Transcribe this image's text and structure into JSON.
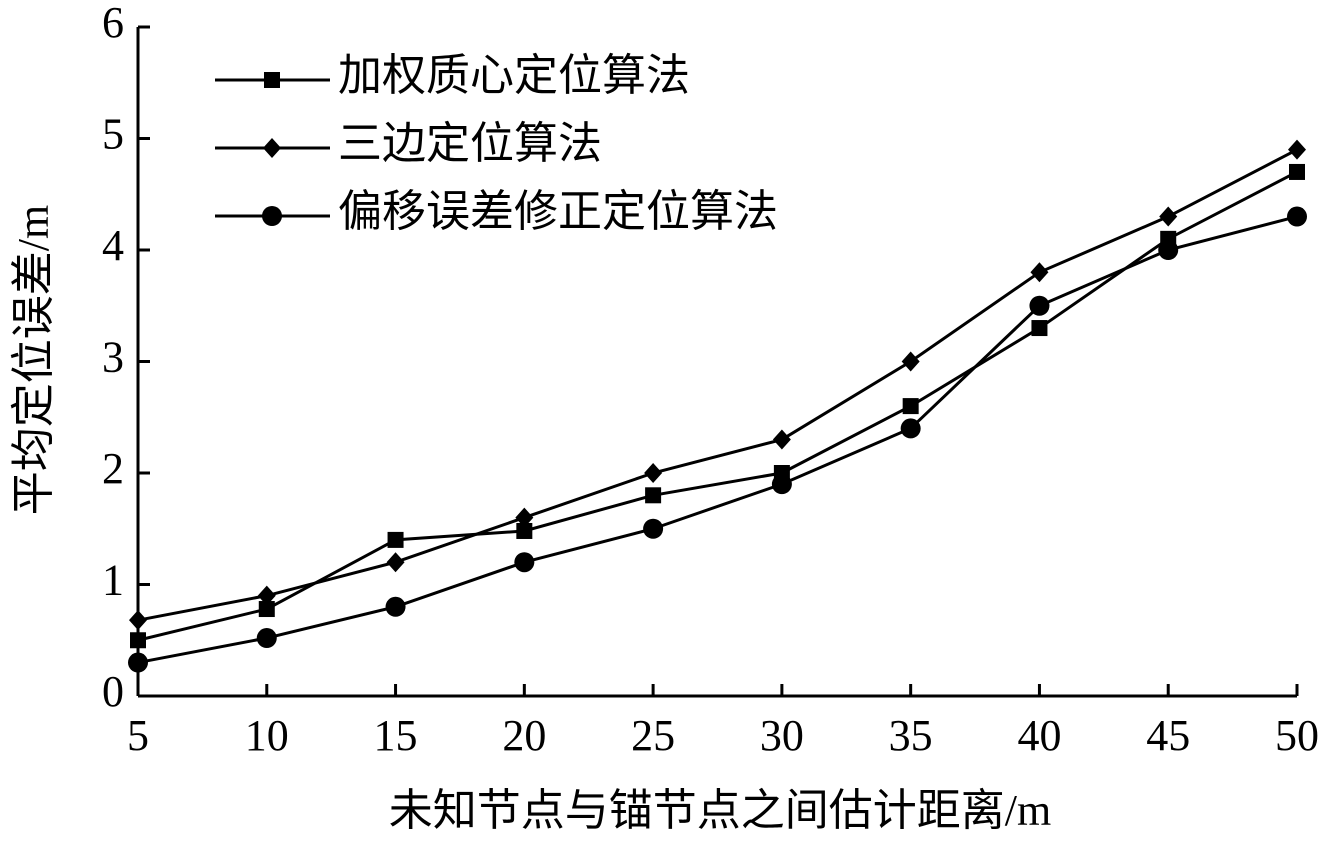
{
  "chart_data": {
    "type": "line",
    "x_label": "未知节点与锚节点之间估计距离/m",
    "y_label": "平均定位误差/m",
    "x": [
      5,
      10,
      15,
      20,
      25,
      30,
      35,
      40,
      45,
      50
    ],
    "xlim": [
      5,
      50
    ],
    "xticks": [
      5,
      10,
      15,
      20,
      25,
      30,
      35,
      40,
      45,
      50
    ],
    "ylim": [
      0,
      6
    ],
    "yticks": [
      0,
      1,
      2,
      3,
      4,
      5,
      6
    ],
    "legend": "upper left",
    "series": [
      {
        "name": "加权质心定位算法",
        "color": "#000000",
        "marker": "square",
        "values": [
          0.5,
          0.78,
          1.4,
          1.48,
          1.8,
          2.0,
          2.6,
          3.3,
          4.1,
          4.7
        ]
      },
      {
        "name": "三边定位算法",
        "color": "#000000",
        "marker": "diamond",
        "values": [
          0.68,
          0.9,
          1.2,
          1.6,
          2.0,
          2.3,
          3.0,
          3.8,
          4.3,
          4.9
        ]
      },
      {
        "name": "偏移误差修正定位算法",
        "color": "#000000",
        "marker": "circle",
        "values": [
          0.3,
          0.52,
          0.8,
          1.2,
          1.5,
          1.9,
          2.4,
          3.5,
          4.0,
          4.3
        ]
      }
    ]
  }
}
